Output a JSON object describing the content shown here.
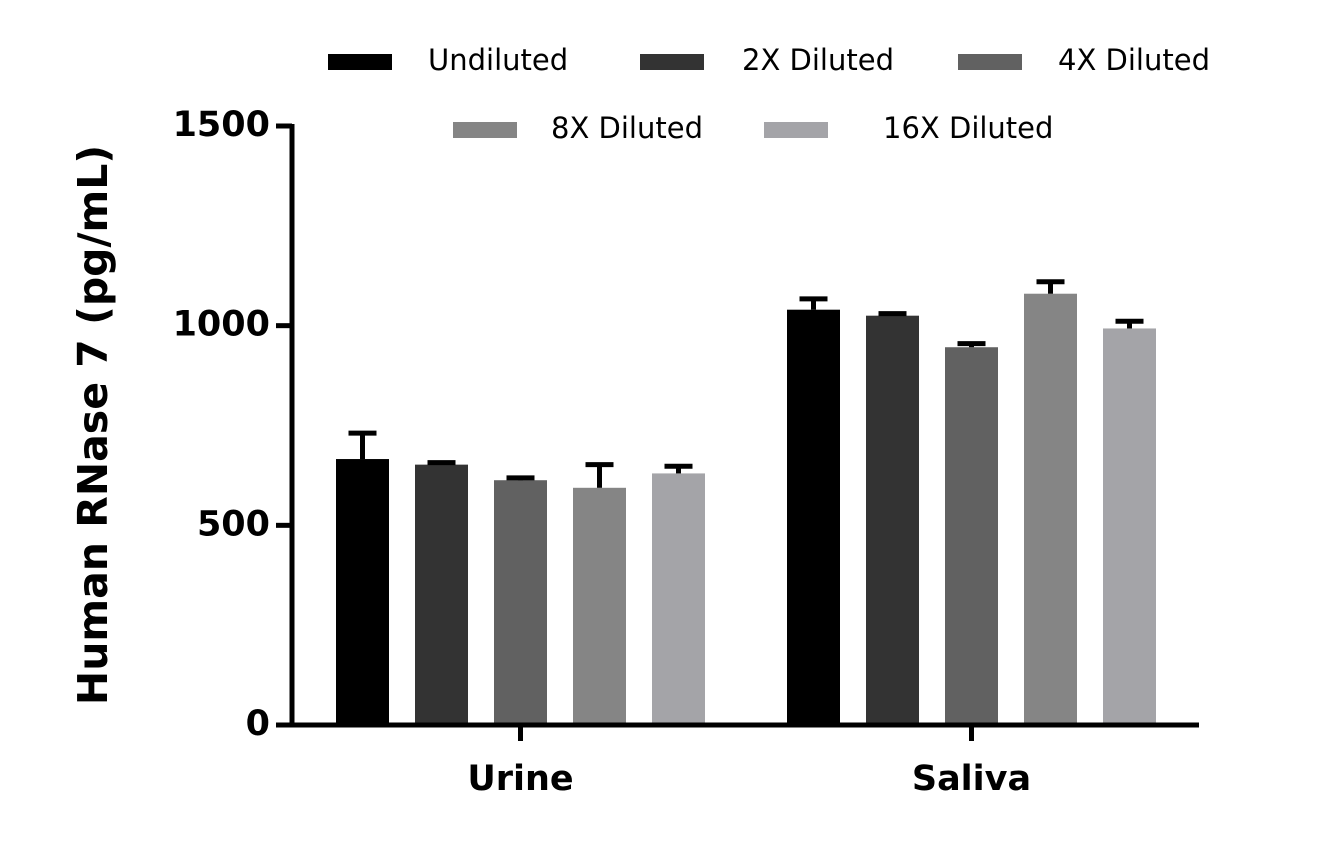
{
  "chart_data": {
    "type": "bar",
    "title": "",
    "xlabel": "",
    "ylabel": "Human RNase 7 (pg/mL)",
    "ylim": [
      0,
      1500
    ],
    "yticks": [
      0,
      500,
      1000,
      1500
    ],
    "categories": [
      "Urine",
      "Saliva"
    ],
    "series": [
      {
        "name": "Undiluted",
        "color": "#000000",
        "values": [
          666,
          1040
        ],
        "errors": [
          65,
          27
        ]
      },
      {
        "name": "2X Diluted",
        "color": "#333333",
        "values": [
          652,
          1025
        ],
        "errors": [
          5,
          5
        ]
      },
      {
        "name": "4X Diluted",
        "color": "#616161",
        "values": [
          613,
          946
        ],
        "errors": [
          6,
          9
        ]
      },
      {
        "name": "8X Diluted",
        "color": "#858585",
        "values": [
          594,
          1080
        ],
        "errors": [
          58,
          30
        ]
      },
      {
        "name": "16X Diluted",
        "color": "#a4a4a8",
        "values": [
          630,
          993
        ],
        "errors": [
          18,
          18
        ]
      }
    ],
    "grid": false,
    "legend_position": "top"
  }
}
